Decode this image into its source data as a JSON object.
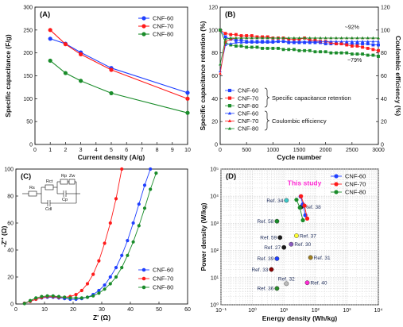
{
  "colors": {
    "cnf60": "#1f3fff",
    "cnf70": "#ff1a1a",
    "cnf80": "#1a8c2a",
    "this_study": "#ff2ad4"
  },
  "chart_data": [
    {
      "id": "A",
      "panel_label": "(A)",
      "type": "line",
      "xlabel": "Current density (A/g)",
      "ylabel": "Specific capacitance (F/g)",
      "xlim": [
        0,
        10
      ],
      "ylim": [
        0,
        300
      ],
      "xticks": [
        0,
        1,
        2,
        3,
        4,
        5,
        6,
        7,
        8,
        9,
        10
      ],
      "yticks": [
        0,
        50,
        100,
        150,
        200,
        250,
        300
      ],
      "legend_position": "top-right",
      "series": [
        {
          "name": "CNF-60",
          "color": "#1f3fff",
          "x": [
            1,
            2,
            3,
            5,
            10
          ],
          "y": [
            231,
            220,
            201,
            167,
            113
          ]
        },
        {
          "name": "CNF-70",
          "color": "#ff1a1a",
          "x": [
            1,
            2,
            3,
            5,
            10
          ],
          "y": [
            250,
            219,
            197,
            163,
            100
          ]
        },
        {
          "name": "CNF-80",
          "color": "#1a8c2a",
          "x": [
            1,
            2,
            3,
            5,
            10
          ],
          "y": [
            183,
            156,
            139,
            112,
            69
          ]
        }
      ]
    },
    {
      "id": "B",
      "panel_label": "(B)",
      "type": "line",
      "xlabel": "Cycle number",
      "ylabel": "Specific capacitance retention (%)",
      "ylabel_right": "Coulombic efficiency (%)",
      "xlim": [
        0,
        3000
      ],
      "ylim": [
        0,
        120
      ],
      "ylim_right": [
        0,
        120
      ],
      "xticks": [
        0,
        500,
        1000,
        1500,
        2000,
        2500,
        3000
      ],
      "yticks": [
        0,
        20,
        40,
        60,
        80,
        100,
        120
      ],
      "legend_position": "bottom-left",
      "legend_group_retention": "Specific capacitance retention",
      "legend_group_coulombic": "Coulombic efficiency",
      "annotations": [
        "~92%",
        "~79%"
      ],
      "x": [
        0,
        100,
        200,
        300,
        400,
        500,
        600,
        700,
        800,
        900,
        1000,
        1100,
        1200,
        1300,
        1400,
        1500,
        1600,
        1700,
        1800,
        1900,
        2000,
        2100,
        2200,
        2300,
        2400,
        2500,
        2600,
        2700,
        2800,
        2900,
        3000
      ],
      "series": [
        {
          "name": "CNF-60",
          "group": "retention",
          "color": "#1f3fff",
          "marker": "square",
          "values": [
            100,
            94,
            92,
            91,
            91,
            90,
            90,
            90,
            90,
            90,
            90,
            90,
            90,
            89,
            89,
            89,
            89,
            89,
            89,
            89,
            88,
            88,
            88,
            88,
            88,
            88,
            88,
            88,
            88,
            87,
            87
          ]
        },
        {
          "name": "CNF-70",
          "group": "retention",
          "color": "#ff1a1a",
          "marker": "square",
          "values": [
            100,
            97,
            96,
            96,
            95,
            95,
            95,
            94,
            94,
            94,
            93,
            93,
            93,
            92,
            92,
            92,
            93,
            91,
            91,
            90,
            90,
            89,
            88,
            88,
            87,
            86,
            86,
            85,
            84,
            83,
            82
          ]
        },
        {
          "name": "CNF-80",
          "group": "retention",
          "color": "#1a8c2a",
          "marker": "square",
          "values": [
            100,
            89,
            87,
            86,
            86,
            85,
            85,
            85,
            84,
            84,
            84,
            84,
            83,
            83,
            83,
            82,
            82,
            82,
            81,
            81,
            81,
            80,
            80,
            80,
            80,
            79,
            79,
            79,
            78,
            78,
            77
          ]
        },
        {
          "name": "CNF-60",
          "group": "coulombic",
          "color": "#1f3fff",
          "marker": "triangle",
          "values": [
            64,
            87,
            88,
            89,
            89,
            89,
            89,
            89,
            89,
            89,
            89,
            90,
            90,
            90,
            90,
            90,
            90,
            90,
            90,
            90,
            90,
            90,
            90,
            90,
            90,
            90,
            90,
            90,
            90,
            90,
            90
          ]
        },
        {
          "name": "CNF-70",
          "group": "coulombic",
          "color": "#ff1a1a",
          "marker": "triangle",
          "values": [
            62,
            90,
            92,
            93,
            93,
            93,
            93,
            93,
            93,
            93,
            93,
            93,
            93,
            93,
            93,
            93,
            93,
            93,
            93,
            93,
            93,
            93,
            93,
            93,
            93,
            93,
            93,
            93,
            93,
            93,
            93
          ]
        },
        {
          "name": "CNF-80",
          "group": "coulombic",
          "color": "#1a8c2a",
          "marker": "triangle",
          "values": [
            70,
            92,
            93,
            93,
            93,
            93,
            93,
            93,
            93,
            93,
            93,
            93,
            93,
            93,
            93,
            93,
            93,
            93,
            93,
            93,
            93,
            93,
            93,
            93,
            93,
            93,
            93,
            93,
            93,
            93,
            93
          ]
        }
      ]
    },
    {
      "id": "C",
      "panel_label": "(C)",
      "type": "scatter",
      "xlabel": "Z' (Ω)",
      "ylabel": "-Z'' (Ω)",
      "xlim": [
        0,
        60
      ],
      "ylim": [
        0,
        100
      ],
      "xticks": [
        0,
        10,
        20,
        30,
        40,
        50,
        60
      ],
      "yticks": [
        0,
        20,
        40,
        60,
        80,
        100
      ],
      "legend_position": "bottom-right",
      "circuit_labels": [
        "Rs",
        "Rct",
        "Rp",
        "Zw",
        "Cdl",
        "Cp"
      ],
      "series": [
        {
          "name": "CNF-60",
          "color": "#1f3fff",
          "x": [
            3,
            5,
            7,
            9,
            11,
            13,
            15,
            17,
            19,
            21,
            23,
            25,
            27,
            29,
            31,
            33,
            35,
            37,
            39,
            41,
            43,
            45,
            47
          ],
          "y": [
            0.5,
            2,
            3.5,
            4.5,
            5,
            5,
            4.5,
            4,
            3.5,
            3.5,
            4,
            5,
            7,
            10,
            14,
            20,
            27,
            36,
            47,
            60,
            74,
            88,
            100
          ]
        },
        {
          "name": "CNF-70",
          "color": "#ff1a1a",
          "x": [
            3,
            5,
            7,
            9,
            11,
            13,
            15,
            17,
            19,
            21,
            23,
            25,
            27,
            29,
            31,
            33,
            35,
            37
          ],
          "y": [
            0.5,
            2,
            3.5,
            4.8,
            5.5,
            5.5,
            5,
            5,
            5.5,
            7,
            10,
            15,
            22,
            32,
            45,
            60,
            78,
            100
          ]
        },
        {
          "name": "CNF-80",
          "color": "#1a8c2a",
          "x": [
            3,
            5,
            7,
            9,
            11,
            13,
            15,
            17,
            19,
            21,
            23,
            25,
            27,
            29,
            31,
            33,
            35,
            37,
            39,
            41,
            43,
            45,
            47,
            49
          ],
          "y": [
            0.3,
            2.5,
            4.5,
            5.5,
            6,
            6,
            5.5,
            5,
            4.5,
            4.5,
            4.5,
            5,
            6,
            8,
            11,
            15,
            20,
            27,
            36,
            46,
            58,
            71,
            85,
            97
          ]
        }
      ]
    },
    {
      "id": "D",
      "panel_label": "(D)",
      "type": "scatter",
      "xlabel": "Energy density (Wh/kg)",
      "ylabel": "Power density (W/kg)",
      "xscale": "log",
      "yscale": "log",
      "xlim": [
        0.1,
        10000
      ],
      "ylim": [
        1,
        100000
      ],
      "xtick_labels": [
        "10⁻¹",
        "10⁰",
        "10¹",
        "10²",
        "10³",
        "10⁴"
      ],
      "ytick_labels": [
        "10⁰",
        "10¹",
        "10²",
        "10³",
        "10⁴",
        "10⁵"
      ],
      "legend_position": "top-right",
      "this_study_label": "This study",
      "series": [
        {
          "name": "CNF-60",
          "color": "#1f3fff",
          "x": [
            34,
            40,
            48
          ],
          "y": [
            9800,
            5000,
            2000
          ]
        },
        {
          "name": "CNF-70",
          "color": "#ff1a1a",
          "x": [
            35,
            45,
            55
          ],
          "y": [
            10000,
            4500,
            1500
          ]
        },
        {
          "name": "CNF-80",
          "color": "#1a8c2a",
          "x": [
            25,
            32,
            40
          ],
          "y": [
            7400,
            3800,
            1300
          ]
        }
      ],
      "references": [
        {
          "label": "Ref. 34",
          "x": 12,
          "y": 7000,
          "color": "#3ec9c9"
        },
        {
          "label": "Ref. 38",
          "x": 35,
          "y": 4000,
          "color": "#1a1a1a"
        },
        {
          "label": "Ref. 58",
          "x": 6,
          "y": 1200,
          "color": "#1a8c2a"
        },
        {
          "label": "Ref. 37",
          "x": 25,
          "y": 350,
          "color": "#ffff33"
        },
        {
          "label": "Ref. 59",
          "x": 7.5,
          "y": 300,
          "color": "#1a1a1a"
        },
        {
          "label": "Ref. 30",
          "x": 17,
          "y": 170,
          "color": "#8a5cc0"
        },
        {
          "label": "Ref. 27",
          "x": 10,
          "y": 130,
          "color": "#1a1a1a"
        },
        {
          "label": "Ref. 39",
          "x": 6,
          "y": 50,
          "color": "#1f3fff"
        },
        {
          "label": "Ref. 31",
          "x": 70,
          "y": 55,
          "color": "#a08020"
        },
        {
          "label": "Ref. 33",
          "x": 4,
          "y": 20,
          "color": "#8b0000"
        },
        {
          "label": "Ref. 32",
          "x": 12,
          "y": 6,
          "color": "#bbbbbb"
        },
        {
          "label": "Ref. 40",
          "x": 55,
          "y": 6.5,
          "color": "#ff2ad4"
        },
        {
          "label": "Ref. 36",
          "x": 6,
          "y": 4,
          "color": "#2a8c2a"
        }
      ]
    }
  ]
}
